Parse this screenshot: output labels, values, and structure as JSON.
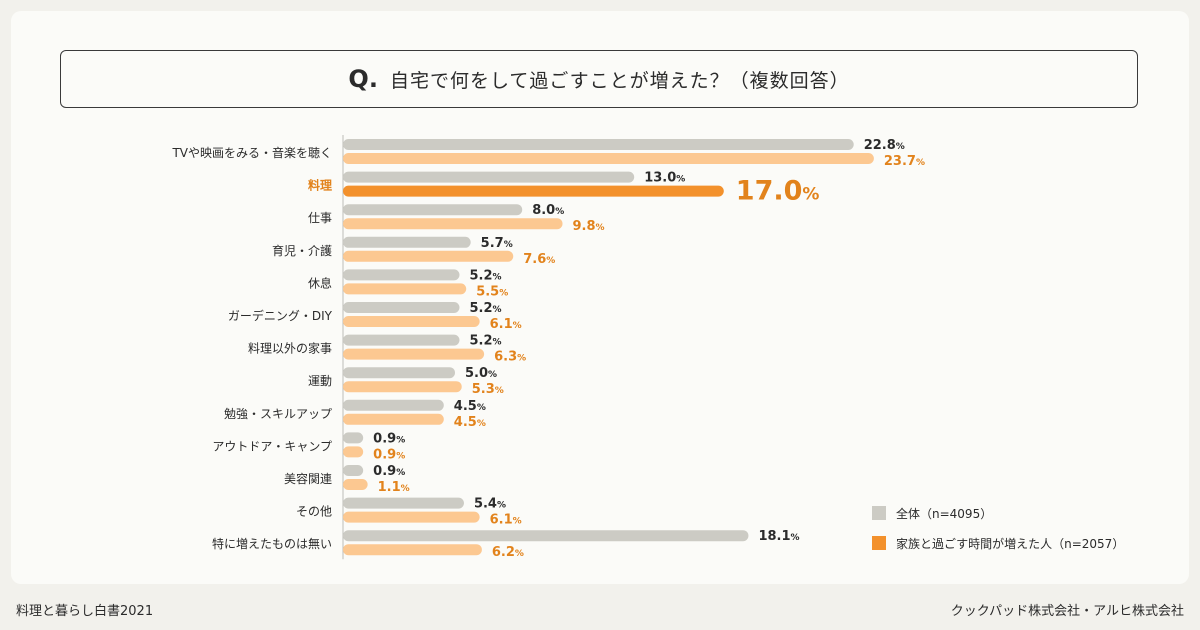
{
  "question": {
    "mark": "Q.",
    "text": "自宅で何をして過ごすことが増えた？（複数回答）"
  },
  "chart_data": {
    "type": "bar",
    "orientation": "horizontal",
    "unit": "%",
    "categories": [
      "TVや映画をみる・音楽を聴く",
      "料理",
      "仕事",
      "育児・介護",
      "休息",
      "ガーデニング・DIY",
      "料理以外の家事",
      "運動",
      "勉強・スキルアップ",
      "アウトドア・キャンプ",
      "美容関連",
      "その他",
      "特に増えたものは無い"
    ],
    "highlight_category": "料理",
    "series": [
      {
        "name": "全体（n=4095）",
        "color": "#cccbc4",
        "values": [
          22.8,
          13.0,
          8.0,
          5.7,
          5.2,
          5.2,
          5.2,
          5.0,
          4.5,
          0.9,
          0.9,
          5.4,
          18.1
        ]
      },
      {
        "name": "家族と過ごす時間が増えた人（n=2057）",
        "color": "#fcc891",
        "highlight_color": "#f3912c",
        "values": [
          23.7,
          17.0,
          9.8,
          7.6,
          5.5,
          6.1,
          6.3,
          5.3,
          4.5,
          0.9,
          1.1,
          6.1,
          6.2
        ]
      }
    ],
    "legend_position": "bottom-right"
  },
  "footer": {
    "left": "料理と暮らし白書2021",
    "right": "クックパッド株式会社・アルヒ株式会社"
  }
}
